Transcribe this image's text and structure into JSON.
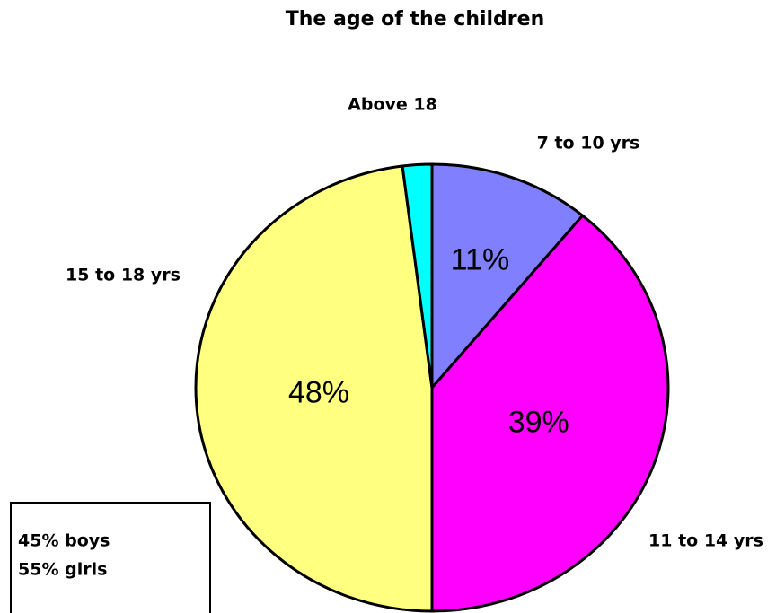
{
  "chart_data": {
    "type": "pie",
    "title": "The age of the children",
    "categories": [
      "7 to 10 yrs",
      "11 to 14 yrs",
      "15 to 18 yrs",
      "Above 18"
    ],
    "values": [
      11,
      39,
      48,
      2
    ],
    "value_labels": [
      "11%",
      "39%",
      "48%",
      null
    ],
    "colors": [
      "#8080ff",
      "#ff00ff",
      "#ffff80",
      "#00ffff"
    ],
    "annotations": [
      "45% boys",
      "55% girls"
    ]
  }
}
